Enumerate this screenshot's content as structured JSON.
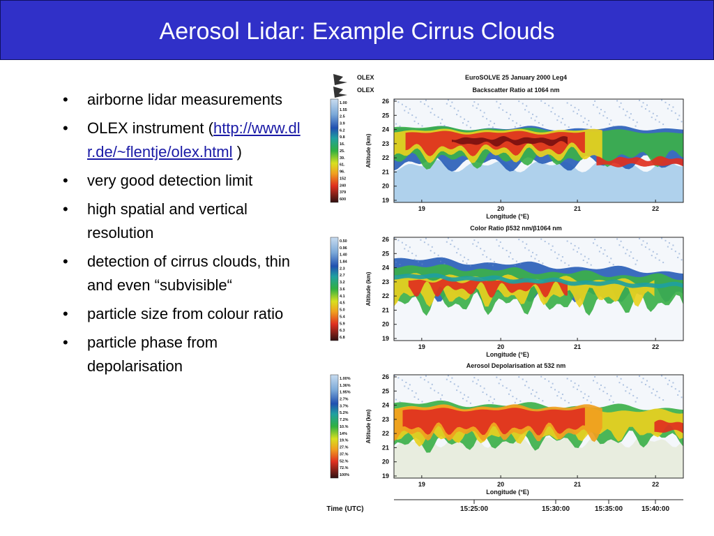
{
  "title": "Aerosol Lidar: Example Cirrus Clouds",
  "bullets": [
    {
      "text": "airborne lidar measurements"
    },
    {
      "text": "OLEX instrument (",
      "link": "http://www.dlr.de/~flentje/olex.html",
      "after": " )"
    },
    {
      "text": "very good detection limit"
    },
    {
      "text": "high spatial and vertical resolution"
    },
    {
      "text": "detection of cirrus clouds, thin and even “subvisible“"
    },
    {
      "text": "particle size from colour ratio"
    },
    {
      "text": "particle phase from depolarisation"
    }
  ],
  "figure": {
    "logos": [
      "OLEX",
      "OLEX"
    ],
    "header": "EuroSOLVE 25 January 2000 Leg4",
    "panels": [
      {
        "title": "Backscatter Ratio at 1064 nm",
        "colorbar": [
          "1.00",
          "1.55",
          "2.5",
          "3.9",
          "6.2",
          "9.8",
          "16.",
          "25.",
          "39.",
          "61.",
          "96.",
          "152",
          "240",
          "379",
          "600"
        ],
        "y_axis_label": "Altitude (km)",
        "y_ticks": [
          "26",
          "25",
          "24",
          "23",
          "22",
          "21",
          "20",
          "19"
        ],
        "x_ticks": [
          "19",
          "20",
          "21",
          "22"
        ],
        "x_axis_label": "Longitude (°E)"
      },
      {
        "title": "Color Ratio β532 nm/β1064 nm",
        "colorbar": [
          "0.50",
          "0.96",
          "1.40",
          "1.84",
          "2.3",
          "2.7",
          "3.2",
          "3.6",
          "4.1",
          "4.5",
          "5.0",
          "5.4",
          "5.9",
          "6.3",
          "6.8"
        ],
        "y_axis_label": "Altitude (km)",
        "y_ticks": [
          "26",
          "25",
          "24",
          "23",
          "22",
          "21",
          "20",
          "19"
        ],
        "x_ticks": [
          "19",
          "20",
          "21",
          "22"
        ],
        "x_axis_label": "Longitude (°E)"
      },
      {
        "title": "Aerosol Depolarisation at 532 nm",
        "colorbar": [
          "1.00%",
          "1.36%",
          "1.95%",
          "2.7%",
          "3.7%",
          "5.2%",
          "7.2%",
          "10.%",
          "14%",
          "19.%",
          "27.%",
          "37.%",
          "52.%",
          "72.%",
          "100%"
        ],
        "y_axis_label": "Altitude (km)",
        "y_ticks": [
          "26",
          "25",
          "24",
          "23",
          "22",
          "21",
          "20",
          "19"
        ],
        "x_ticks": [
          "19",
          "20",
          "21",
          "22"
        ],
        "x_axis_label": "Longitude (°E)"
      }
    ],
    "time_axis": {
      "label": "Time (UTC)",
      "ticks": [
        "15:25:00",
        "15:30:00",
        "15:35:00",
        "15:40:00"
      ]
    }
  }
}
